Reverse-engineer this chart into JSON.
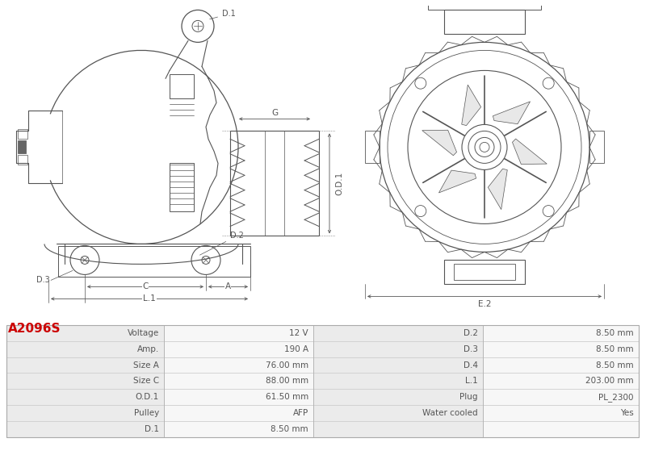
{
  "title": "A2096S",
  "title_color": "#cc0000",
  "bg_color": "#ffffff",
  "table_border_color": "#cccccc",
  "drawing_line_color": "#555555",
  "rows": [
    [
      "Voltage",
      "12 V",
      "D.2",
      "8.50 mm"
    ],
    [
      "Amp.",
      "190 A",
      "D.3",
      "8.50 mm"
    ],
    [
      "Size A",
      "76.00 mm",
      "D.4",
      "8.50 mm"
    ],
    [
      "Size C",
      "88.00 mm",
      "L.1",
      "203.00 mm"
    ],
    [
      "O.D.1",
      "61.50 mm",
      "Plug",
      "PL_2300"
    ],
    [
      "Pulley",
      "AFP",
      "Water cooled",
      "Yes"
    ],
    [
      "D.1",
      "8.50 mm",
      "",
      ""
    ]
  ],
  "fig_width": 8.0,
  "fig_height": 5.64
}
